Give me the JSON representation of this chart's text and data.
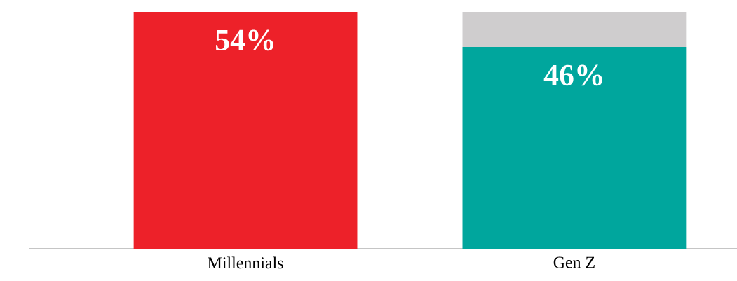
{
  "chart_data": {
    "type": "bar",
    "stacked": true,
    "categories": [
      "Millennials",
      "Gen Z"
    ],
    "series": [
      {
        "colors": [
          "#ed2129",
          "#00a69d"
        ],
        "values": [
          54,
          46
        ],
        "value_labels": [
          "54%",
          "46%"
        ]
      },
      {
        "color": "#cfcdce",
        "values": [
          null,
          8
        ]
      }
    ]
  }
}
